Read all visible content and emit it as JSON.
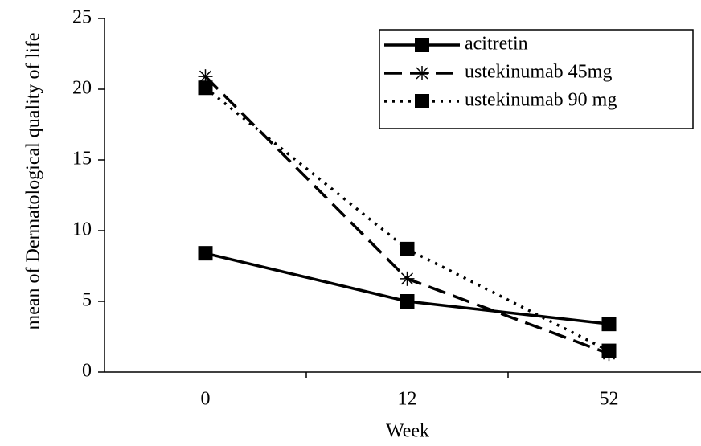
{
  "chart_data": {
    "type": "line",
    "xlabel": "Week",
    "ylabel": "mean of Dermatological quality of life",
    "categories": [
      "0",
      "12",
      "52"
    ],
    "series": [
      {
        "name": "acitretin",
        "color": "#000000",
        "dash": "solid",
        "marker": "square",
        "values": [
          8.4,
          5.0,
          3.4
        ]
      },
      {
        "name": "ustekinumab 45mg",
        "color": "#000000",
        "dash": "dashed",
        "marker": "asterisk",
        "values": [
          20.9,
          6.6,
          1.3
        ]
      },
      {
        "name": "ustekinumab 90 mg",
        "color": "#000000",
        "dash": "dotted",
        "marker": "square",
        "values": [
          20.1,
          8.7,
          1.5
        ]
      }
    ],
    "ylim": [
      0,
      25
    ],
    "yticks": [
      0,
      5,
      10,
      15,
      20,
      25
    ],
    "grid": false,
    "legend": "upper right"
  }
}
